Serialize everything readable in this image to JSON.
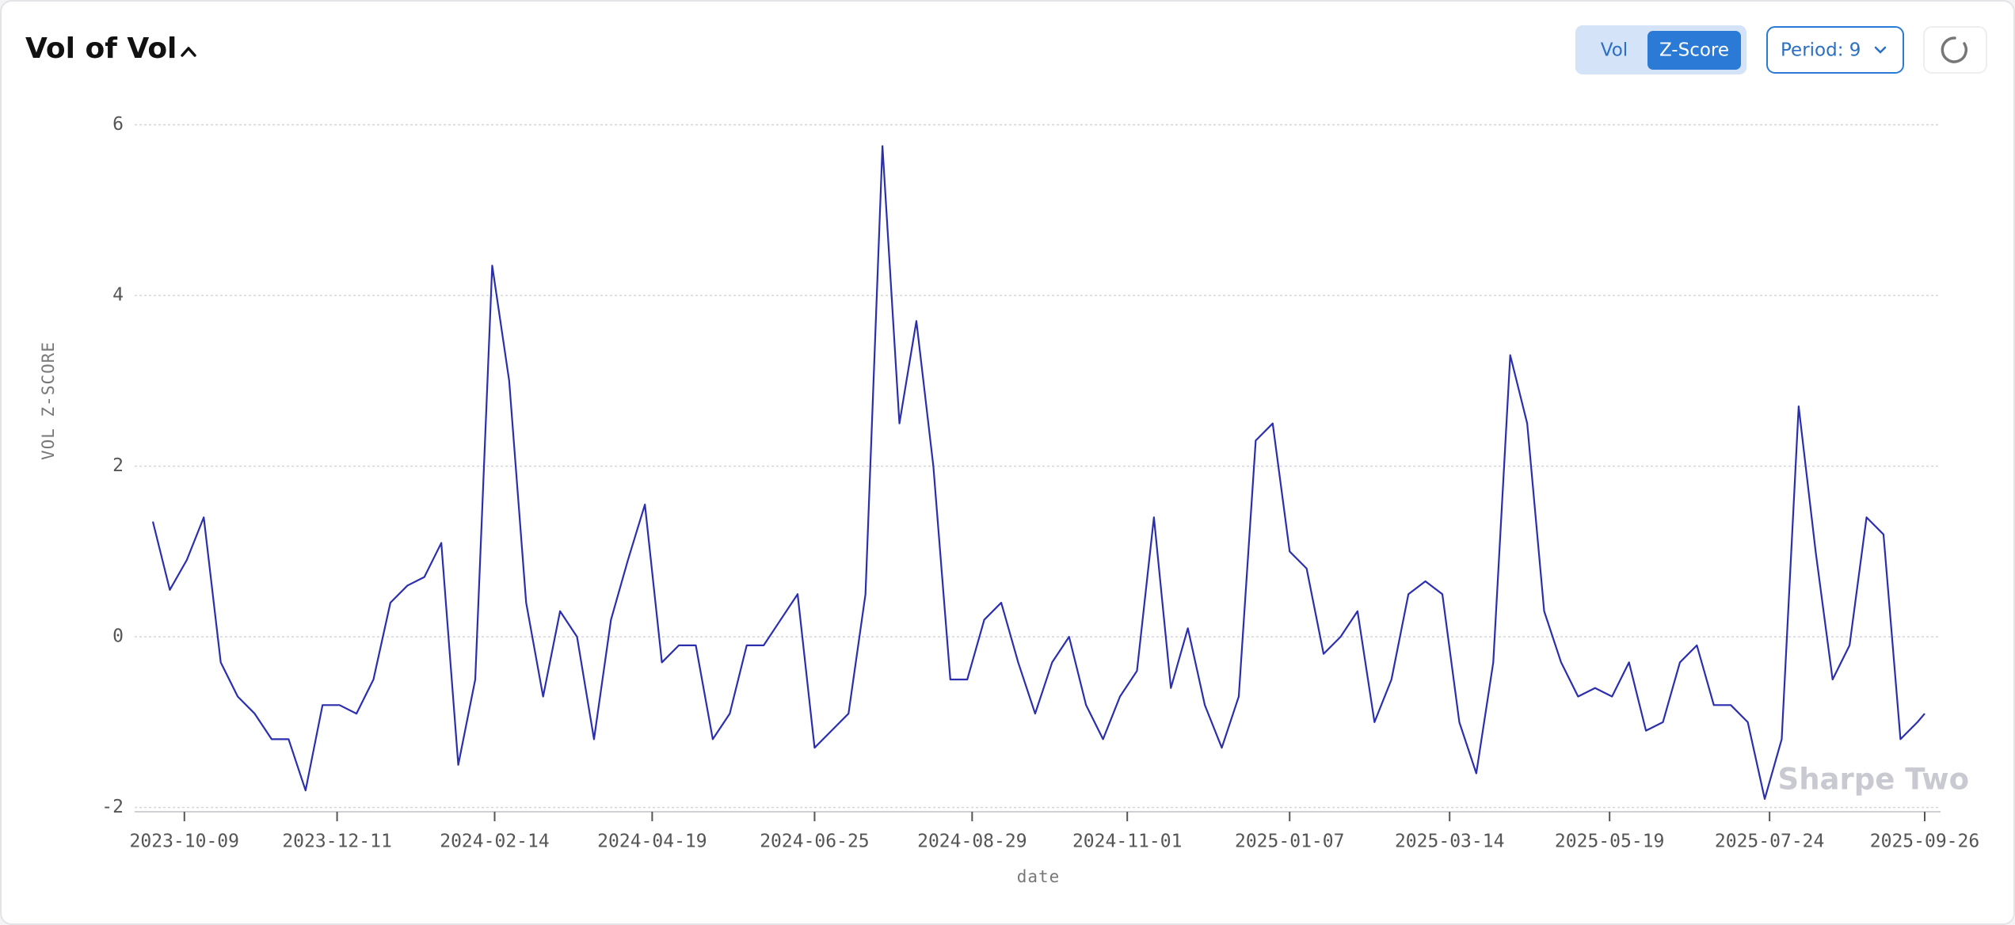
{
  "controls": {
    "toggle": [
      "Vol",
      "Z-Score"
    ],
    "active": 1,
    "period": "Period: 9"
  },
  "chart_data": {
    "type": "line",
    "title": "Vol of Vol",
    "ylabel": "VOL Z-SCORE",
    "xlabel": "date",
    "watermark": "Sharpe Two",
    "color": "#2b2fae",
    "x": [
      "2023-09-26",
      "2023-10-03",
      "2023-10-10",
      "2023-10-17",
      "2023-10-24",
      "2023-10-31",
      "2023-11-07",
      "2023-11-14",
      "2023-11-21",
      "2023-11-28",
      "2023-12-05",
      "2023-12-12",
      "2023-12-19",
      "2023-12-26",
      "2024-01-02",
      "2024-01-09",
      "2024-01-16",
      "2024-01-23",
      "2024-01-30",
      "2024-02-06",
      "2024-02-13",
      "2024-02-20",
      "2024-02-27",
      "2024-03-05",
      "2024-03-12",
      "2024-03-19",
      "2024-03-26",
      "2024-04-02",
      "2024-04-09",
      "2024-04-16",
      "2024-04-23",
      "2024-04-30",
      "2024-05-07",
      "2024-05-14",
      "2024-05-21",
      "2024-05-28",
      "2024-06-04",
      "2024-06-11",
      "2024-06-18",
      "2024-06-25",
      "2024-07-02",
      "2024-07-09",
      "2024-07-16",
      "2024-07-23",
      "2024-07-30",
      "2024-08-06",
      "2024-08-13",
      "2024-08-20",
      "2024-08-27",
      "2024-09-03",
      "2024-09-10",
      "2024-09-17",
      "2024-09-24",
      "2024-10-01",
      "2024-10-08",
      "2024-10-15",
      "2024-10-22",
      "2024-10-29",
      "2024-11-05",
      "2024-11-12",
      "2024-11-19",
      "2024-11-26",
      "2024-12-03",
      "2024-12-10",
      "2024-12-17",
      "2024-12-24",
      "2024-12-31",
      "2025-01-07",
      "2025-01-14",
      "2025-01-21",
      "2025-01-28",
      "2025-02-04",
      "2025-02-11",
      "2025-02-18",
      "2025-02-25",
      "2025-03-04",
      "2025-03-11",
      "2025-03-18",
      "2025-03-25",
      "2025-04-01",
      "2025-04-08",
      "2025-04-15",
      "2025-04-22",
      "2025-04-29",
      "2025-05-06",
      "2025-05-13",
      "2025-05-20",
      "2025-05-27",
      "2025-06-03",
      "2025-06-10",
      "2025-06-17",
      "2025-06-24",
      "2025-07-01",
      "2025-07-08",
      "2025-07-15",
      "2025-07-22",
      "2025-07-29",
      "2025-08-05",
      "2025-08-12",
      "2025-08-19",
      "2025-08-26",
      "2025-09-02",
      "2025-09-09",
      "2025-09-16",
      "2025-09-23",
      "2025-09-26"
    ],
    "values": [
      1.35,
      0.55,
      0.9,
      1.4,
      -0.3,
      -0.7,
      -0.9,
      -1.2,
      -1.2,
      -1.8,
      -0.8,
      -0.8,
      -0.9,
      -0.5,
      0.4,
      0.6,
      0.7,
      1.1,
      -1.5,
      -0.5,
      4.35,
      3.0,
      0.4,
      -0.7,
      0.3,
      0.0,
      -1.2,
      0.2,
      0.9,
      1.55,
      -0.3,
      -0.1,
      -0.1,
      -1.2,
      -0.9,
      -0.1,
      -0.1,
      0.2,
      0.5,
      -1.3,
      -1.1,
      -0.9,
      0.5,
      5.75,
      2.5,
      3.7,
      2.0,
      -0.5,
      -0.5,
      0.2,
      0.4,
      -0.3,
      -0.9,
      -0.3,
      0.0,
      -0.8,
      -1.2,
      -0.7,
      -0.4,
      1.4,
      -0.6,
      0.1,
      -0.8,
      -1.3,
      -0.7,
      2.3,
      2.5,
      1.0,
      0.8,
      -0.2,
      0.0,
      0.3,
      -1.0,
      -0.5,
      0.5,
      0.65,
      0.5,
      -1.0,
      -1.6,
      -0.3,
      3.3,
      2.5,
      0.3,
      -0.3,
      -0.7,
      -0.6,
      -0.7,
      -0.3,
      -1.1,
      -1.0,
      -0.3,
      -0.1,
      -0.8,
      -0.8,
      -1.0,
      -1.9,
      -1.2,
      2.7,
      1.0,
      -0.5,
      -0.1,
      1.4,
      1.2,
      -1.2,
      -1.0,
      -0.9
    ],
    "xlim": [
      "2023-09-26",
      "2025-09-26"
    ],
    "xticks": [
      "2023-10-09",
      "2023-12-11",
      "2024-02-14",
      "2024-04-19",
      "2024-06-25",
      "2024-08-29",
      "2024-11-01",
      "2025-01-07",
      "2025-03-14",
      "2025-05-19",
      "2025-07-24",
      "2025-09-26"
    ],
    "ylim": [
      -2.05,
      6.2
    ],
    "yticks": [
      -2,
      0,
      2,
      4,
      6
    ],
    "grid": true
  }
}
